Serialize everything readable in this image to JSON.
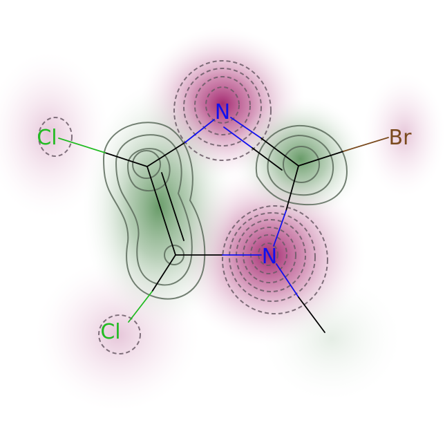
{
  "colors": {
    "background": "#ffffff",
    "positive_contour": "#5a6a5a",
    "positive_fill": "#4e8a4e",
    "negative_contour": "#6a5a66",
    "negative_fill": "#a0206a",
    "bond_carbon": "#000000",
    "nitrogen": "#1010ee",
    "chlorine": "#22bb22",
    "bromine": "#7a4a1e"
  },
  "atoms": [
    {
      "id": "N1",
      "label": "N",
      "element": "nitrogen"
    },
    {
      "id": "N2",
      "label": "N",
      "element": "nitrogen"
    },
    {
      "id": "Cl1",
      "label": "Cl",
      "element": "chlorine"
    },
    {
      "id": "Cl2",
      "label": "Cl",
      "element": "chlorine"
    },
    {
      "id": "Br1",
      "label": "Br",
      "element": "bromine"
    }
  ]
}
